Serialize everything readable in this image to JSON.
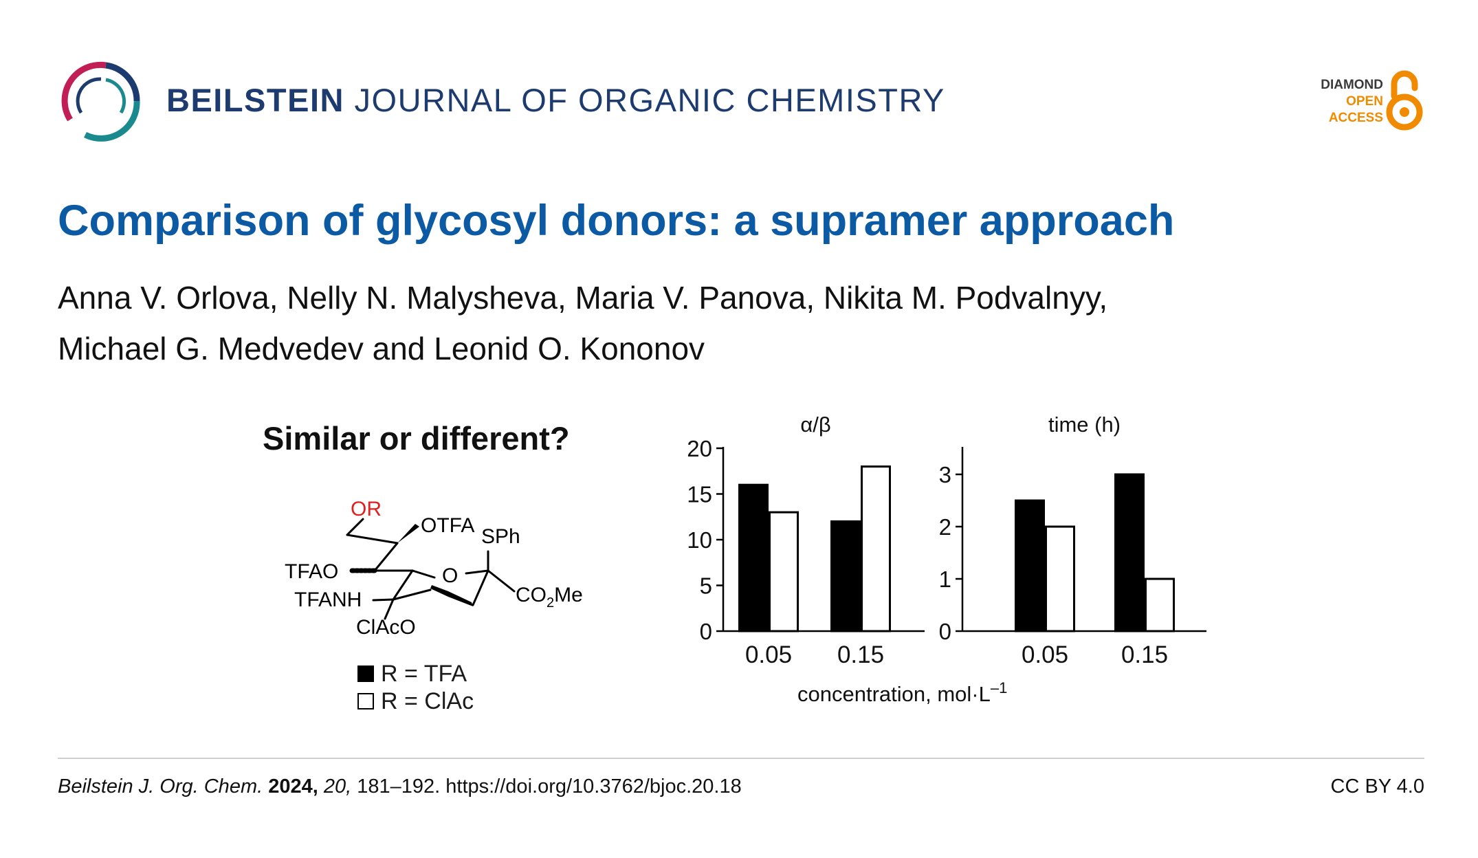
{
  "journal": {
    "name_bold": "BEILSTEIN",
    "name_rest": "JOURNAL OF ORGANIC CHEMISTRY"
  },
  "open_access": {
    "line1": "DIAMOND",
    "line2": "OPEN",
    "line3": "ACCESS",
    "icon": "open-lock-icon",
    "color": "#f08a00"
  },
  "article": {
    "title": "Comparison of glycosyl donors: a supramer approach",
    "authors_line1": "Anna V. Orlova, Nelly N. Malysheva, Maria V. Panova, Nikita M. Podvalnyy,",
    "authors_line2": "Michael G. Medvedev and Leonid O. Kononov"
  },
  "graphical_abstract": {
    "heading": "Similar or different?",
    "molecule": {
      "labels": {
        "or": "OR",
        "otfa": "OTFA",
        "sph": "SPh",
        "tfao": "TFAO",
        "ring_o": "O",
        "tfanh": "TFANH",
        "co2me_prefix": "CO",
        "co2me_sub": "2",
        "co2me_suffix": "Me",
        "clacо": "ClAcO"
      },
      "highlight_color": "#e02020"
    },
    "legend": [
      {
        "label": "R = TFA",
        "fill": "#000000"
      },
      {
        "label": "R = ClAc",
        "fill": "#ffffff"
      }
    ]
  },
  "chart_data": [
    {
      "type": "bar",
      "title": "α/β",
      "categories": [
        "0.05",
        "0.15"
      ],
      "series": [
        {
          "name": "R = TFA",
          "values": [
            16,
            12
          ],
          "color": "#000000"
        },
        {
          "name": "R = ClAc",
          "values": [
            13,
            18
          ],
          "color": "#ffffff"
        }
      ],
      "ylim": [
        0,
        20
      ],
      "yticks": [
        "0",
        "5",
        "10",
        "15",
        "20"
      ],
      "grid": false
    },
    {
      "type": "bar",
      "title": "time (h)",
      "categories": [
        "0.05",
        "0.15"
      ],
      "series": [
        {
          "name": "R = TFA",
          "values": [
            2.5,
            3
          ],
          "color": "#000000"
        },
        {
          "name": "R = ClAc",
          "values": [
            2,
            1
          ],
          "color": "#ffffff"
        }
      ],
      "ylim": [
        0,
        3.5
      ],
      "yticks": [
        "0",
        "1",
        "2",
        "3"
      ],
      "grid": false
    }
  ],
  "shared_xlabel": {
    "text": "concentration, mol·L",
    "sup": "–1"
  },
  "footer": {
    "journal_abbrev": "Beilstein J. Org. Chem.",
    "year": "2024,",
    "volume": "20,",
    "rest": "181–192. https://doi.org/10.3762/bjoc.20.18",
    "license": "CC BY 4.0"
  },
  "colors": {
    "title_blue": "#0b5aa3",
    "journal_navy": "#1d3b6e"
  }
}
